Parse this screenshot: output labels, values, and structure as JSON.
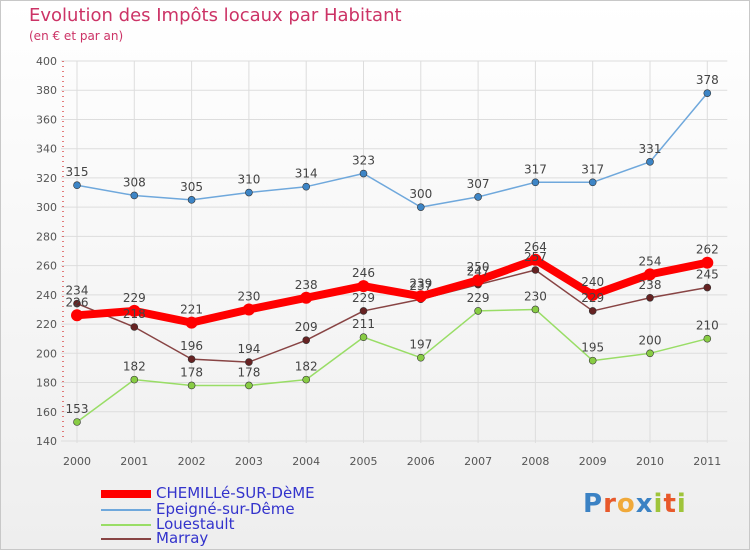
{
  "title": "Evolution des Impôts locaux par Habitant",
  "subtitle": "(en € et par an)",
  "logo": {
    "text": "Proxiti",
    "colors": [
      "#3b82c4",
      "#e8592b",
      "#f0a93a",
      "#3b82c4",
      "#9fc43a",
      "#e8592b",
      "#9fc43a"
    ]
  },
  "chart_data": {
    "type": "line",
    "x": [
      "2000",
      "2001",
      "2002",
      "2003",
      "2004",
      "2005",
      "2006",
      "2007",
      "2008",
      "2009",
      "2010",
      "2011"
    ],
    "ylim": [
      140,
      400
    ],
    "yticks": [
      140,
      160,
      180,
      200,
      220,
      240,
      260,
      280,
      300,
      320,
      340,
      360,
      380,
      400
    ],
    "grid": true,
    "legend_position": "bottom-left",
    "series": [
      {
        "name": "CHEMILLé-SUR-DèME",
        "color": "#ff0000",
        "point_color": "#ff0000",
        "emphasis": true,
        "values": [
          226,
          229,
          221,
          230,
          238,
          246,
          239,
          250,
          264,
          240,
          254,
          262
        ],
        "labels": [
          "226",
          "229",
          "221",
          "230",
          "238",
          "246",
          "239",
          "250",
          "264",
          "240",
          "254",
          "262"
        ]
      },
      {
        "name": "Epeigné-sur-Dême",
        "color": "#6fa8dc",
        "point_color": "#3d85c6",
        "emphasis": false,
        "values": [
          315,
          308,
          305,
          310,
          314,
          323,
          300,
          307,
          317,
          317,
          331,
          378
        ],
        "labels": [
          "315",
          "308",
          "305",
          "310",
          "314",
          "323",
          "300",
          "307",
          "317",
          "317",
          "331",
          "378"
        ]
      },
      {
        "name": "Louestault",
        "color": "#99dd66",
        "point_color": "#88cc44",
        "emphasis": false,
        "values": [
          153,
          182,
          178,
          178,
          182,
          211,
          197,
          229,
          230,
          195,
          200,
          210
        ],
        "labels": [
          "153",
          "182",
          "178",
          "178",
          "182",
          "211",
          "197",
          "229",
          "230",
          "195",
          "200",
          "210"
        ]
      },
      {
        "name": "Marray",
        "color": "#884444",
        "point_color": "#662222",
        "emphasis": false,
        "values": [
          234,
          218,
          196,
          194,
          209,
          229,
          237,
          247,
          257,
          229,
          238,
          245
        ],
        "labels": [
          "234",
          "218",
          "196",
          "194",
          "209",
          "229",
          "237",
          "247",
          "257",
          "229",
          "238",
          "245"
        ]
      }
    ]
  }
}
